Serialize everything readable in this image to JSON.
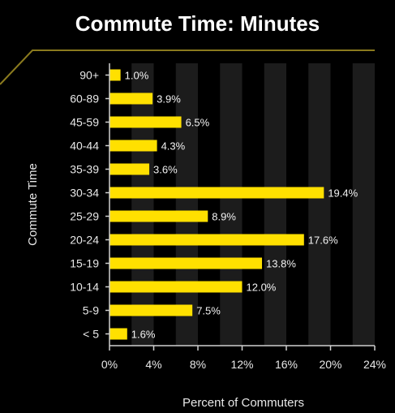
{
  "chart_data": {
    "type": "bar",
    "orientation": "horizontal",
    "title": "Commute Time: Minutes",
    "xlabel": "Percent of Commuters",
    "ylabel": "Commute Time",
    "xlim": [
      0,
      24
    ],
    "xticks": [
      "0%",
      "4%",
      "8%",
      "12%",
      "16%",
      "20%",
      "24%"
    ],
    "categories": [
      "90+",
      "60-89",
      "45-59",
      "40-44",
      "35-39",
      "30-34",
      "25-29",
      "20-24",
      "15-19",
      "10-14",
      "5-9",
      "< 5"
    ],
    "values": [
      1.0,
      3.9,
      6.5,
      4.3,
      3.6,
      19.4,
      8.9,
      17.6,
      13.8,
      12.0,
      7.5,
      1.6
    ],
    "value_labels": [
      "1.0%",
      "3.9%",
      "6.5%",
      "4.3%",
      "3.6%",
      "19.4%",
      "8.9%",
      "17.6%",
      "13.8%",
      "12.0%",
      "7.5%",
      "1.6%"
    ],
    "bar_color": "#ffe000",
    "band_color": "#1c1c1c",
    "accent_color": "#8a7a1e"
  }
}
